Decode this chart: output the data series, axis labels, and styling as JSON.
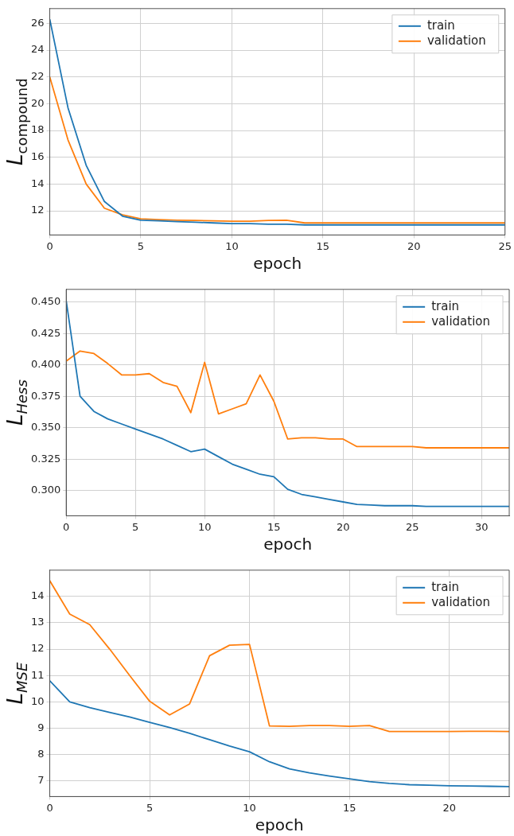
{
  "chart_data": [
    {
      "type": "line",
      "xlabel": "epoch",
      "ylabel": "L$_{compound}$",
      "x": [
        0,
        1,
        2,
        3,
        4,
        5,
        6,
        7,
        8,
        9,
        10,
        11,
        12,
        13,
        14,
        15,
        16,
        17,
        18,
        19,
        20,
        21,
        22,
        23,
        24,
        25
      ],
      "xlim": [
        0,
        25
      ],
      "xticks": [
        0,
        5,
        10,
        15,
        20,
        25
      ],
      "ylim": [
        10.2,
        27.1
      ],
      "yticks": [
        12,
        14,
        16,
        18,
        20,
        22,
        24,
        26
      ],
      "grid": true,
      "legend": "top right",
      "line_style": "solid",
      "series": [
        {
          "name": "train",
          "color": "#1f77b4",
          "values": [
            26.3,
            19.7,
            15.4,
            12.7,
            11.6,
            11.3,
            11.25,
            11.2,
            11.15,
            11.1,
            11.05,
            11.05,
            11.0,
            11.0,
            10.95,
            10.95,
            10.95,
            10.95,
            10.95,
            10.95,
            10.95,
            10.95,
            10.95,
            10.95,
            10.95,
            10.95
          ]
        },
        {
          "name": "validation",
          "color": "#ff7f0e",
          "values": [
            22.0,
            17.3,
            14.0,
            12.2,
            11.7,
            11.4,
            11.35,
            11.3,
            11.28,
            11.25,
            11.22,
            11.22,
            11.28,
            11.3,
            11.1,
            11.1,
            11.1,
            11.1,
            11.1,
            11.1,
            11.1,
            11.1,
            11.1,
            11.1,
            11.1,
            11.1
          ]
        }
      ]
    },
    {
      "type": "line",
      "xlabel": "epoch",
      "ylabel": "L$_{Hess}$",
      "x": [
        0,
        1,
        2,
        3,
        4,
        5,
        6,
        7,
        8,
        9,
        10,
        11,
        12,
        13,
        14,
        15,
        16,
        17,
        18,
        19,
        20,
        21,
        22,
        23,
        24,
        25,
        26,
        27,
        28,
        29,
        30,
        31,
        32
      ],
      "xlim": [
        0,
        32
      ],
      "xticks": [
        0,
        5,
        10,
        15,
        20,
        25,
        30
      ],
      "ylim": [
        0.28,
        0.46
      ],
      "yticks": [
        {
          "value": 0.3,
          "label": "0.300"
        },
        {
          "value": 0.325,
          "label": "0.325"
        },
        {
          "value": 0.35,
          "label": "0.350"
        },
        {
          "value": 0.375,
          "label": "0.375"
        },
        {
          "value": 0.4,
          "label": "0.400"
        },
        {
          "value": 0.425,
          "label": "0.425"
        },
        {
          "value": 0.45,
          "label": "0.450"
        }
      ],
      "grid": true,
      "legend": "top right",
      "line_style": "solid",
      "series": [
        {
          "name": "train",
          "color": "#1f77b4",
          "values": [
            0.451,
            0.375,
            0.363,
            0.357,
            0.353,
            0.349,
            0.345,
            0.341,
            0.336,
            0.331,
            0.333,
            0.327,
            0.321,
            0.317,
            0.313,
            0.311,
            0.301,
            0.297,
            0.295,
            0.293,
            0.291,
            0.289,
            0.2885,
            0.288,
            0.288,
            0.288,
            0.2875,
            0.2875,
            0.2875,
            0.2875,
            0.2875,
            0.2875,
            0.2875
          ]
        },
        {
          "name": "validation",
          "color": "#ff7f0e",
          "values": [
            0.403,
            0.411,
            0.409,
            0.401,
            0.392,
            0.392,
            0.393,
            0.386,
            0.383,
            0.362,
            0.402,
            0.361,
            0.365,
            0.369,
            0.392,
            0.371,
            0.341,
            0.342,
            0.342,
            0.341,
            0.341,
            0.335,
            0.335,
            0.335,
            0.335,
            0.335,
            0.334,
            0.334,
            0.334,
            0.334,
            0.334,
            0.334,
            0.334
          ]
        }
      ]
    },
    {
      "type": "line",
      "xlabel": "epoch",
      "ylabel": "L$_{MSE}$",
      "x": [
        0,
        1,
        2,
        3,
        4,
        5,
        6,
        7,
        8,
        9,
        10,
        11,
        12,
        13,
        14,
        15,
        16,
        17,
        18,
        19,
        20,
        21,
        22,
        23
      ],
      "xlim": [
        0,
        23
      ],
      "xticks": [
        0,
        5,
        10,
        15,
        20
      ],
      "ylim": [
        6.4,
        15.0
      ],
      "yticks": [
        7,
        8,
        9,
        10,
        11,
        12,
        13,
        14
      ],
      "grid": true,
      "legend": "top right",
      "line_style": "solid",
      "series": [
        {
          "name": "train",
          "color": "#1f77b4",
          "values": [
            10.8,
            10.0,
            9.78,
            9.6,
            9.42,
            9.22,
            9.02,
            8.8,
            8.56,
            8.32,
            8.1,
            7.72,
            7.45,
            7.3,
            7.18,
            7.07,
            6.97,
            6.9,
            6.85,
            6.83,
            6.81,
            6.8,
            6.79,
            6.78
          ]
        },
        {
          "name": "validation",
          "color": "#ff7f0e",
          "values": [
            14.6,
            13.33,
            12.93,
            12.0,
            11.0,
            10.02,
            9.5,
            9.92,
            11.75,
            12.15,
            12.18,
            9.08,
            9.07,
            9.1,
            9.1,
            9.07,
            9.1,
            8.87,
            8.87,
            8.87,
            8.87,
            8.88,
            8.88,
            8.87
          ]
        }
      ]
    }
  ]
}
